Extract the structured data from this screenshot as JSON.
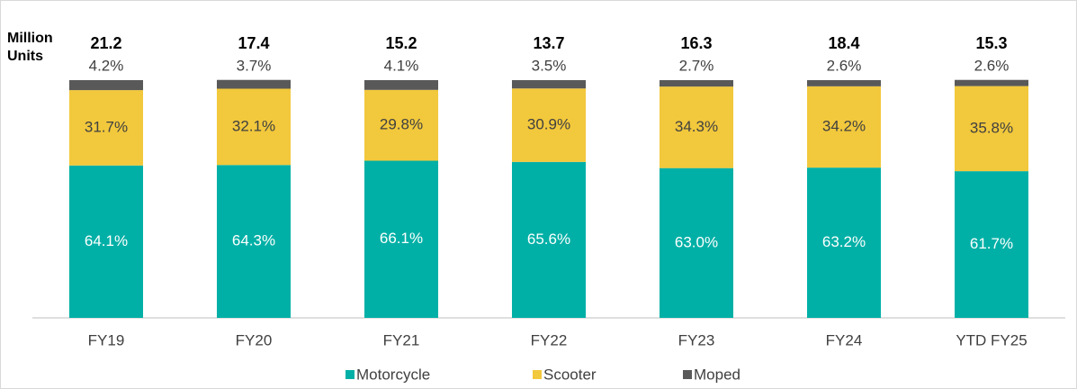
{
  "chart_data": {
    "type": "stacked_bar_100",
    "ylabel": "Million Units",
    "categories": [
      "FY19",
      "FY20",
      "FY21",
      "FY22",
      "FY23",
      "FY24",
      "YTD FY25"
    ],
    "totals": [
      21.2,
      17.4,
      15.2,
      13.7,
      16.3,
      18.4,
      15.3
    ],
    "ylim": [
      0,
      100
    ],
    "series": [
      {
        "name": "Motorcycle",
        "color": "#00b0a6",
        "values": [
          64.1,
          64.3,
          66.1,
          65.6,
          63.0,
          63.2,
          61.7
        ],
        "value_labels": [
          "64.1%",
          "64.3%",
          "66.1%",
          "65.6%",
          "63.0%",
          "63.2%",
          "61.7%"
        ]
      },
      {
        "name": "Scooter",
        "color": "#f2c83c",
        "values": [
          31.7,
          32.1,
          29.8,
          30.9,
          34.3,
          34.2,
          35.8
        ],
        "value_labels": [
          "31.7%",
          "32.1%",
          "29.8%",
          "30.9%",
          "34.3%",
          "34.2%",
          "35.8%"
        ]
      },
      {
        "name": "Moped",
        "color": "#595959",
        "values": [
          4.2,
          3.7,
          4.1,
          3.5,
          2.7,
          2.6,
          2.6
        ],
        "value_labels": [
          "4.2%",
          "3.7%",
          "4.1%",
          "3.5%",
          "2.7%",
          "2.6%",
          "2.6%"
        ]
      }
    ],
    "legend": "bottom"
  }
}
